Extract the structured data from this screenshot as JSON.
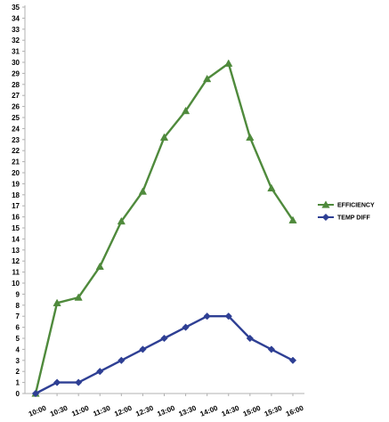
{
  "chart_data": {
    "type": "line",
    "x": [
      "10:00",
      "10:30",
      "11:00",
      "11:30",
      "12:00",
      "12:30",
      "13:00",
      "13:30",
      "14:00",
      "14:30",
      "15:00",
      "15:30",
      "16:00"
    ],
    "y_ticks": [
      "0",
      "1",
      "2",
      "3",
      "4",
      "5",
      "6",
      "7",
      "8",
      "9",
      "10",
      "11",
      "12",
      "13",
      "14",
      "15",
      "16",
      "17",
      "18",
      "19",
      "20",
      "21",
      "22",
      "23",
      "24",
      "25",
      "26",
      "27",
      "28",
      "29",
      "30",
      "31",
      "32",
      "33",
      "34",
      "35"
    ],
    "ylim": [
      0,
      35
    ],
    "grid": false,
    "legend_position": "right",
    "series": [
      {
        "name": "EFFICIENCY",
        "color": "#4f8a3c",
        "marker": "triangle",
        "values": [
          0,
          8.2,
          8.7,
          11.5,
          15.6,
          18.3,
          23.2,
          25.6,
          28.5,
          29.9,
          23.2,
          18.6,
          15.7
        ]
      },
      {
        "name": "TEMP DIFF",
        "color": "#2e3f94",
        "marker": "diamond",
        "values": [
          0,
          1,
          1,
          2,
          3,
          4,
          5,
          6,
          7,
          7,
          5,
          4,
          3
        ]
      }
    ]
  }
}
